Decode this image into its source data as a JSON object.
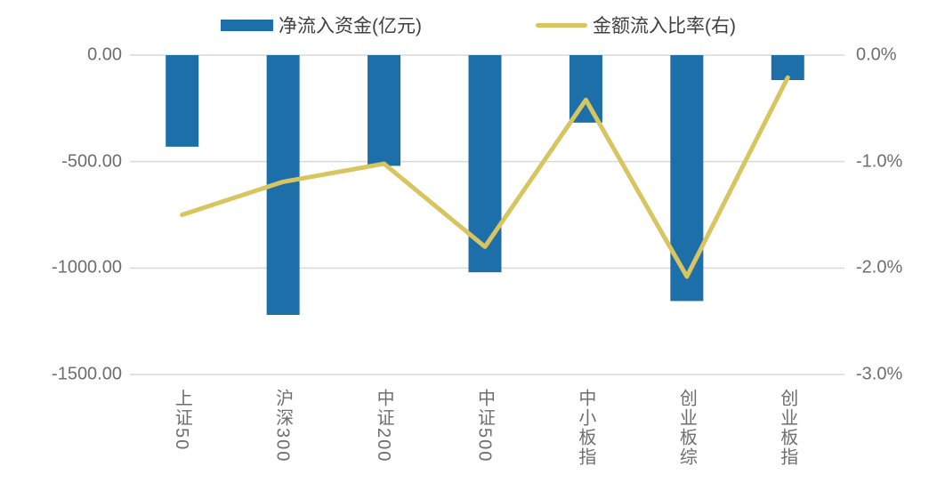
{
  "chart_data": {
    "type": "bar",
    "subtype": "combo-bar-line",
    "title": "",
    "categories": [
      "上证50",
      "沪深300",
      "中证200",
      "中证500",
      "中小板指",
      "创业板综",
      "创业板指"
    ],
    "series": [
      {
        "name": "净流入资金(亿元)",
        "type": "bar",
        "axis": "left",
        "color": "#1d6fa9",
        "values": [
          -430,
          -1220,
          -520,
          -1020,
          -317,
          -1155,
          -117
        ]
      },
      {
        "name": "金额流入比率(右)",
        "type": "line",
        "axis": "right",
        "color": "#d8c55f",
        "values": [
          -1.5,
          -1.19,
          -1.02,
          -1.8,
          -0.42,
          -2.08,
          -0.21
        ]
      }
    ],
    "left_axis": {
      "ylim": [
        -1500,
        0
      ],
      "tick_labels": [
        "0.00",
        "-500.00",
        "-1000.00",
        "-1500.00"
      ],
      "tick_values": [
        0,
        -500,
        -1000,
        -1500
      ]
    },
    "right_axis": {
      "ylim": [
        -3,
        0
      ],
      "tick_labels": [
        "0.0%",
        "-1.0%",
        "-2.0%",
        "-3.0%"
      ],
      "tick_values": [
        0,
        -1,
        -2,
        -3
      ]
    },
    "grid": true,
    "legend_position": "top-center",
    "colors": {
      "grid": "#d9d9d9",
      "axis_text": "#6e6e6e",
      "legend_text": "#404040",
      "background": "#ffffff"
    }
  }
}
